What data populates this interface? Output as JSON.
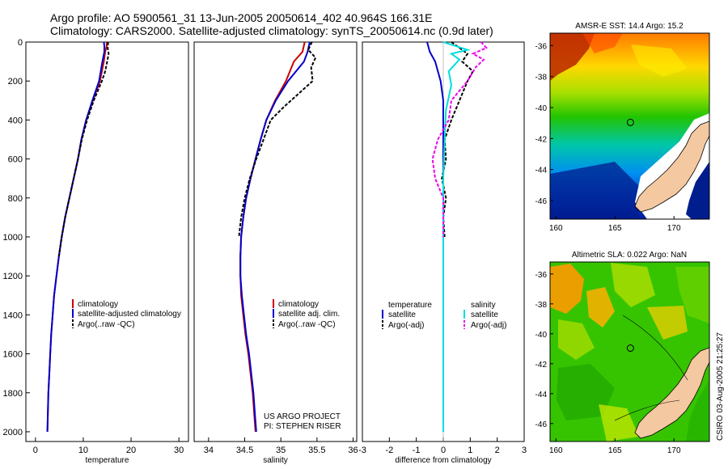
{
  "header": {
    "line1": "Argo profile: AO 5900561_31 13-Jun-2005 20050614_402 40.964S 166.31E",
    "line2": "Climatology: CARS2000. Satellite-adjusted climatology: synTS_20050614.nc (0.9d later)"
  },
  "chart_data": [
    {
      "id": "temperature",
      "type": "line",
      "xlabel": "temperature",
      "ylabel": "",
      "xlim": [
        -2,
        32
      ],
      "ylim": [
        2050,
        0
      ],
      "xticks": [
        0,
        10,
        20,
        30
      ],
      "yticks": [
        0,
        200,
        400,
        600,
        800,
        1000,
        1200,
        1400,
        1600,
        1800,
        2000
      ],
      "legend": [
        "climatology",
        "satellite-adjusted climatology",
        "Argo(..raw -QC)"
      ],
      "series": [
        {
          "name": "climatology",
          "color": "#cc0000",
          "dash": "",
          "points": [
            [
              14.9,
              0
            ],
            [
              14.9,
              20
            ],
            [
              14.6,
              50
            ],
            [
              14.3,
              100
            ],
            [
              13.5,
              200
            ],
            [
              12.0,
              300
            ],
            [
              10.6,
              400
            ],
            [
              9.6,
              500
            ],
            [
              8.9,
              600
            ],
            [
              8.0,
              700
            ],
            [
              7.1,
              800
            ],
            [
              6.2,
              900
            ],
            [
              5.5,
              1000
            ],
            [
              4.9,
              1100
            ],
            [
              4.4,
              1200
            ],
            [
              3.9,
              1300
            ],
            [
              3.6,
              1400
            ],
            [
              3.3,
              1500
            ],
            [
              3.1,
              1600
            ],
            [
              2.9,
              1700
            ],
            [
              2.7,
              1800
            ],
            [
              2.6,
              1900
            ],
            [
              2.5,
              2000
            ]
          ]
        },
        {
          "name": "satellite-adjusted climatology",
          "color": "#0000cc",
          "dash": "",
          "points": [
            [
              14.3,
              0
            ],
            [
              14.4,
              20
            ],
            [
              14.4,
              50
            ],
            [
              14.0,
              100
            ],
            [
              13.3,
              200
            ],
            [
              11.9,
              300
            ],
            [
              10.6,
              400
            ],
            [
              9.6,
              500
            ],
            [
              8.9,
              600
            ],
            [
              8.0,
              700
            ],
            [
              7.1,
              800
            ],
            [
              6.2,
              900
            ],
            [
              5.5,
              1000
            ],
            [
              4.9,
              1100
            ],
            [
              4.4,
              1200
            ],
            [
              3.9,
              1300
            ],
            [
              3.6,
              1400
            ],
            [
              3.3,
              1500
            ],
            [
              3.1,
              1600
            ],
            [
              2.9,
              1700
            ],
            [
              2.7,
              1800
            ],
            [
              2.6,
              1900
            ],
            [
              2.5,
              2000
            ]
          ]
        },
        {
          "name": "Argo(..raw -QC)",
          "color": "#000000",
          "dash": "4,2",
          "points": [
            [
              15.2,
              0
            ],
            [
              15.1,
              30
            ],
            [
              15.3,
              60
            ],
            [
              15.0,
              100
            ],
            [
              14.6,
              150
            ],
            [
              13.9,
              200
            ],
            [
              12.2,
              300
            ],
            [
              10.8,
              400
            ],
            [
              9.7,
              500
            ],
            [
              8.9,
              600
            ],
            [
              8.0,
              700
            ],
            [
              7.1,
              800
            ],
            [
              6.2,
              900
            ],
            [
              5.5,
              1000
            ],
            [
              4.9,
              1100
            ]
          ]
        }
      ]
    },
    {
      "id": "salinity",
      "type": "line",
      "xlabel": "salinity",
      "ylabel": "",
      "xlim": [
        33.8,
        36.05
      ],
      "ylim": [
        2050,
        0
      ],
      "xticks": [
        34,
        34.5,
        35,
        35.5,
        36
      ],
      "yticks": [],
      "legend": [
        "climatology",
        "satellite adj. clim.",
        "Argo(..raw -QC)"
      ],
      "annotation": [
        "US ARGO PROJECT",
        "PI: STEPHEN RISER"
      ],
      "series": [
        {
          "name": "climatology",
          "color": "#cc0000",
          "dash": "",
          "points": [
            [
              35.33,
              0
            ],
            [
              35.3,
              50
            ],
            [
              35.18,
              100
            ],
            [
              35.07,
              200
            ],
            [
              34.92,
              300
            ],
            [
              34.8,
              400
            ],
            [
              34.72,
              500
            ],
            [
              34.65,
              600
            ],
            [
              34.58,
              700
            ],
            [
              34.52,
              800
            ],
            [
              34.48,
              900
            ],
            [
              34.45,
              1000
            ],
            [
              34.44,
              1100
            ],
            [
              34.44,
              1200
            ],
            [
              34.45,
              1300
            ],
            [
              34.48,
              1400
            ],
            [
              34.51,
              1500
            ],
            [
              34.55,
              1600
            ],
            [
              34.58,
              1700
            ],
            [
              34.61,
              1800
            ],
            [
              34.63,
              1900
            ],
            [
              34.65,
              2000
            ]
          ]
        },
        {
          "name": "satellite adj. clim.",
          "color": "#0000cc",
          "dash": "",
          "points": [
            [
              35.4,
              0
            ],
            [
              35.37,
              50
            ],
            [
              35.32,
              100
            ],
            [
              35.1,
              200
            ],
            [
              34.93,
              300
            ],
            [
              34.8,
              400
            ],
            [
              34.72,
              500
            ],
            [
              34.65,
              600
            ],
            [
              34.58,
              700
            ],
            [
              34.52,
              800
            ],
            [
              34.48,
              900
            ],
            [
              34.45,
              1000
            ],
            [
              34.44,
              1100
            ],
            [
              34.44,
              1200
            ],
            [
              34.46,
              1300
            ],
            [
              34.49,
              1400
            ],
            [
              34.52,
              1500
            ],
            [
              34.56,
              1600
            ],
            [
              34.59,
              1700
            ],
            [
              34.62,
              1800
            ],
            [
              34.64,
              1900
            ],
            [
              34.66,
              2000
            ]
          ]
        },
        {
          "name": "Argo(..raw -QC)",
          "color": "#000000",
          "dash": "4,2",
          "points": [
            [
              35.43,
              0
            ],
            [
              35.38,
              40
            ],
            [
              35.48,
              80
            ],
            [
              35.42,
              130
            ],
            [
              35.44,
              200
            ],
            [
              35.2,
              280
            ],
            [
              35.05,
              330
            ],
            [
              34.86,
              400
            ],
            [
              34.76,
              500
            ],
            [
              34.66,
              600
            ],
            [
              34.57,
              700
            ],
            [
              34.5,
              800
            ],
            [
              34.45,
              900
            ],
            [
              34.42,
              1000
            ]
          ]
        }
      ]
    },
    {
      "id": "difference",
      "type": "line",
      "xlabel": "difference from climatology",
      "ylabel": "",
      "xlim": [
        -3,
        3
      ],
      "ylim": [
        2050,
        0
      ],
      "xticks": [
        -3,
        -2,
        -1,
        0,
        1,
        2,
        3
      ],
      "yticks": [],
      "legend_left": [
        "temperature",
        "satellite",
        "Argo(-adj)"
      ],
      "legend_right": [
        "salinity",
        "satellite",
        "Argo(-adj)"
      ],
      "series": [
        {
          "name": "temperature satellite",
          "color": "#0000cc",
          "dash": "",
          "points": [
            [
              -0.6,
              0
            ],
            [
              -0.5,
              50
            ],
            [
              -0.3,
              100
            ],
            [
              -0.1,
              200
            ],
            [
              0,
              300
            ],
            [
              0,
              400
            ],
            [
              0,
              600
            ],
            [
              0,
              800
            ],
            [
              0,
              1000
            ],
            [
              0,
              1500
            ],
            [
              0,
              2000
            ]
          ]
        },
        {
          "name": "temperature Argo(-adj)",
          "color": "#000000",
          "dash": "4,2",
          "points": [
            [
              0.3,
              0
            ],
            [
              0.6,
              30
            ],
            [
              0.9,
              60
            ],
            [
              0.7,
              100
            ],
            [
              1.1,
              150
            ],
            [
              0.9,
              200
            ],
            [
              0.6,
              300
            ],
            [
              0.3,
              400
            ],
            [
              0.05,
              500
            ],
            [
              0.1,
              600
            ],
            [
              -0.05,
              700
            ],
            [
              0.1,
              800
            ],
            [
              0,
              900
            ],
            [
              0.05,
              1000
            ]
          ]
        },
        {
          "name": "salinity satellite",
          "color": "#00dddd",
          "dash": "",
          "points": [
            [
              0,
              0
            ],
            [
              0.45,
              20
            ],
            [
              0.9,
              40
            ],
            [
              0.3,
              60
            ],
            [
              0.6,
              90
            ],
            [
              0.2,
              150
            ],
            [
              0.3,
              220
            ],
            [
              0.1,
              350
            ],
            [
              0.05,
              500
            ],
            [
              0,
              700
            ],
            [
              0,
              1000
            ],
            [
              0,
              1500
            ],
            [
              0,
              2000
            ]
          ]
        },
        {
          "name": "salinity Argo(-adj)",
          "color": "#ee00ee",
          "dash": "4,2",
          "points": [
            [
              1.4,
              0
            ],
            [
              1.6,
              30
            ],
            [
              1.1,
              60
            ],
            [
              1.5,
              90
            ],
            [
              1.2,
              130
            ],
            [
              0.9,
              200
            ],
            [
              0.3,
              300
            ],
            [
              0.2,
              400
            ],
            [
              -0.2,
              500
            ],
            [
              -0.4,
              600
            ],
            [
              -0.3,
              700
            ],
            [
              0,
              800
            ],
            [
              0,
              900
            ],
            [
              0,
              1000
            ]
          ]
        }
      ]
    }
  ],
  "maps": [
    {
      "id": "sst",
      "title": "AMSR-E SST: 14.4 Argo: 15.2",
      "lon_ticks": [
        160,
        165,
        170
      ],
      "lat_ticks": [
        -36,
        -38,
        -40,
        -42,
        -44,
        -46
      ],
      "lon_range": [
        159.5,
        173.0
      ],
      "lat_range": [
        -35.2,
        -47.2
      ],
      "argo_lon": 166.31,
      "argo_lat": -40.96
    },
    {
      "id": "sla",
      "title": "Altimetric SLA: 0.022 Argo: NaN",
      "lon_ticks": [
        160,
        165,
        170
      ],
      "lat_ticks": [
        -36,
        -38,
        -40,
        -42,
        -44,
        -46
      ],
      "lon_range": [
        159.5,
        173.0
      ],
      "lat_range": [
        -35.2,
        -47.2
      ],
      "argo_lon": 166.31,
      "argo_lat": -40.96
    }
  ],
  "side_label": "CSIRO 03-Aug-2005 21:25:27"
}
